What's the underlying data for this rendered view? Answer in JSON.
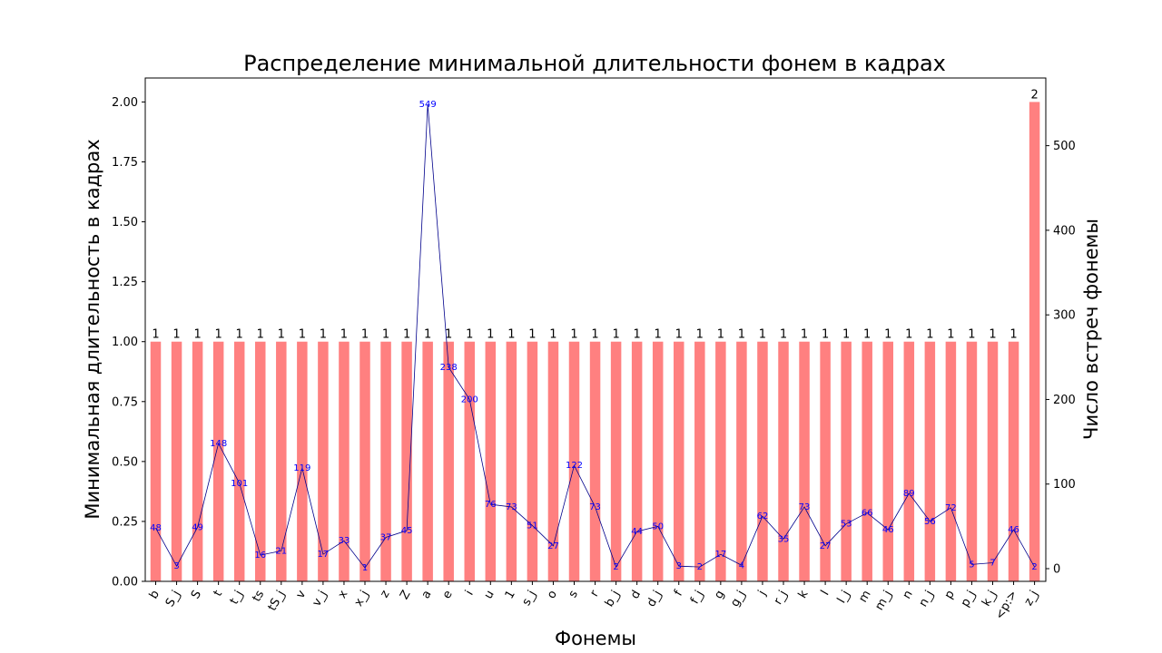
{
  "chart_data": {
    "type": "bar",
    "title": "Распределение минимальной длительности фонем в кадрах",
    "xlabel": "Фонемы",
    "ylabel": "Минимальная длительность в кадрах",
    "y2label": "Число встреч фонемы",
    "grid": false,
    "legend": "none",
    "categories": [
      "b",
      "S_j",
      "S",
      "t",
      "t_j",
      "ts",
      "tS_j",
      "v",
      "v_j",
      "x",
      "x_j",
      "z",
      "Z",
      "a",
      "e",
      "i",
      "u",
      "1",
      "s_j",
      "o",
      "s",
      "r",
      "b_j",
      "d",
      "d_j",
      "f",
      "f_j",
      "g",
      "g_j",
      "j",
      "r_j",
      "k",
      "l",
      "l_j",
      "m",
      "m_j",
      "n",
      "n_j",
      "p",
      "p_j",
      "k_j",
      "<p:>",
      "z_j"
    ],
    "ylim": [
      0,
      2.1
    ],
    "yticks": [
      "0.00",
      "0.25",
      "0.50",
      "0.75",
      "1.00",
      "1.25",
      "1.50",
      "1.75",
      "2.00"
    ],
    "y2lim": [
      -15,
      580
    ],
    "y2ticks": [
      "0",
      "100",
      "200",
      "300",
      "400",
      "500"
    ],
    "series": [
      {
        "type": "bar",
        "color": "#ff8080",
        "values": [
          1,
          1,
          1,
          1,
          1,
          1,
          1,
          1,
          1,
          1,
          1,
          1,
          1,
          1,
          1,
          1,
          1,
          1,
          1,
          1,
          1,
          1,
          1,
          1,
          1,
          1,
          1,
          1,
          1,
          1,
          1,
          1,
          1,
          1,
          1,
          1,
          1,
          1,
          1,
          1,
          1,
          1,
          2
        ]
      },
      {
        "type": "line",
        "axis": "right",
        "color": "#00008b",
        "label_color": "#0000ff",
        "values": [
          48,
          3,
          49,
          148,
          101,
          16,
          21,
          119,
          17,
          33,
          1,
          37,
          45,
          549,
          238,
          200,
          76,
          73,
          51,
          27,
          122,
          73,
          2,
          44,
          50,
          3,
          2,
          17,
          4,
          62,
          35,
          73,
          27,
          53,
          66,
          46,
          89,
          56,
          72,
          5,
          7,
          46,
          2
        ]
      }
    ]
  }
}
